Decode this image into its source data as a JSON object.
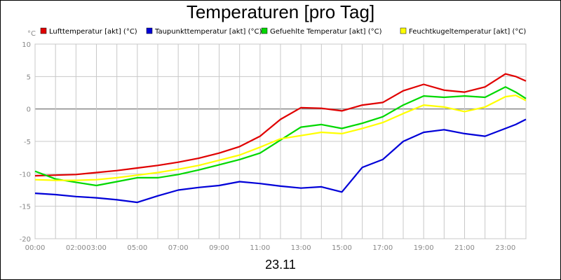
{
  "chart_data": {
    "type": "line",
    "title": "Temperaturen [pro Tag]",
    "xlabel": "23.11",
    "ylabel": "°C",
    "ylim": [
      -20,
      10
    ],
    "xlim_hours": [
      0,
      24
    ],
    "grid": true,
    "legend_position": "top",
    "x_ticks": [
      "00:00",
      "02:00",
      "03:00",
      "05:00",
      "07:00",
      "09:00",
      "11:00",
      "13:00",
      "15:00",
      "17:00",
      "19:00",
      "21:00",
      "23:00"
    ],
    "y_ticks": [
      "10",
      "5",
      "0",
      "-5",
      "-10",
      "-15",
      "-20"
    ],
    "series": [
      {
        "name": "Lufttemperatur [akt] (°C)",
        "color": "#e00000",
        "x": [
          0,
          1,
          2,
          3,
          4,
          5,
          6,
          7,
          8,
          9,
          10,
          11,
          12,
          13,
          14,
          15,
          16,
          17,
          18,
          19,
          20,
          21,
          22,
          23,
          23.5,
          24
        ],
        "y": [
          -10.3,
          -10.2,
          -10.1,
          -9.8,
          -9.5,
          -9.1,
          -8.7,
          -8.2,
          -7.6,
          -6.8,
          -5.8,
          -4.2,
          -1.6,
          0.2,
          0.1,
          -0.3,
          0.6,
          1.0,
          2.8,
          3.8,
          2.9,
          2.6,
          3.4,
          5.4,
          5.0,
          4.3
        ]
      },
      {
        "name": "Taupunkttemperatur [akt] (°C)",
        "color": "#0000d8",
        "x": [
          0,
          1,
          2,
          3,
          4,
          5,
          6,
          7,
          8,
          9,
          10,
          11,
          12,
          13,
          14,
          15,
          16,
          17,
          18,
          19,
          20,
          21,
          22,
          23,
          23.5,
          24
        ],
        "y": [
          -13.0,
          -13.2,
          -13.5,
          -13.7,
          -14.0,
          -14.4,
          -13.4,
          -12.5,
          -12.1,
          -11.8,
          -11.2,
          -11.5,
          -11.9,
          -12.2,
          -12.0,
          -12.8,
          -9.0,
          -7.8,
          -5.0,
          -3.6,
          -3.2,
          -3.8,
          -4.2,
          -3.0,
          -2.4,
          -1.6
        ]
      },
      {
        "name": "Gefuehlte Temperatur [akt] (°C)",
        "color": "#00d800",
        "x": [
          0,
          1,
          2,
          3,
          4,
          5,
          6,
          7,
          8,
          9,
          10,
          11,
          12,
          13,
          14,
          15,
          16,
          17,
          18,
          19,
          20,
          21,
          22,
          23,
          23.5,
          24
        ],
        "y": [
          -9.6,
          -10.8,
          -11.3,
          -11.8,
          -11.2,
          -10.6,
          -10.6,
          -10.1,
          -9.4,
          -8.6,
          -7.8,
          -6.8,
          -4.8,
          -2.8,
          -2.4,
          -3.0,
          -2.2,
          -1.2,
          0.6,
          2.0,
          1.8,
          2.0,
          1.8,
          3.4,
          2.6,
          1.6
        ]
      },
      {
        "name": "Feuchtkugeltemperatur [akt] (°C)",
        "color": "#ffff00",
        "x": [
          0,
          1,
          2,
          3,
          4,
          5,
          6,
          7,
          8,
          9,
          10,
          11,
          12,
          13,
          14,
          15,
          16,
          17,
          18,
          19,
          20,
          21,
          22,
          23,
          23.5,
          24
        ],
        "y": [
          -10.9,
          -11.0,
          -11.0,
          -10.9,
          -10.6,
          -10.2,
          -9.8,
          -9.3,
          -8.7,
          -7.9,
          -7.1,
          -5.9,
          -4.6,
          -4.1,
          -3.6,
          -3.8,
          -3.0,
          -2.1,
          -0.7,
          0.6,
          0.3,
          -0.4,
          0.3,
          1.9,
          2.1,
          1.3
        ]
      }
    ]
  },
  "plot": {
    "background": "#ffffff",
    "grid_color": "#c8c8c8",
    "zero_line_color": "#888888"
  }
}
